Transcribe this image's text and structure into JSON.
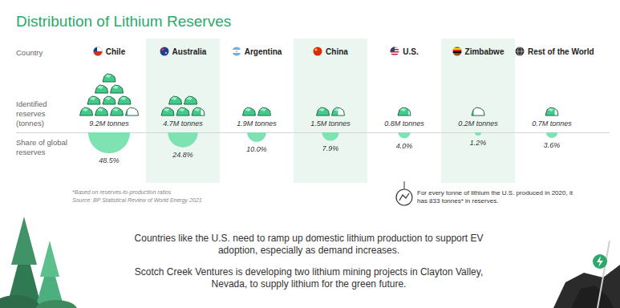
{
  "chart_data": {
    "type": "bubble",
    "title": "Distribution of Lithium Reserves",
    "categories": [
      "Chile",
      "Australia",
      "Argentina",
      "China",
      "U.S.",
      "Zimbabwe",
      "Rest of the World"
    ],
    "values": [
      48.5,
      24.8,
      10.0,
      7.9,
      4.0,
      1.2,
      3.6
    ],
    "value_labels": [
      "48.5%",
      "24.8%",
      "10.0%",
      "7.9%",
      "4.0%",
      "1.2%",
      "3.6%"
    ],
    "data_labels": true,
    "color": "#7ee2b3",
    "grid": false,
    "tick_labels": false,
    "row_labels": [
      "Country",
      "Identified reserves (tonnes)",
      "Share of global reserves"
    ],
    "reserves": [
      9.2,
      4.7,
      1.9,
      1.5,
      0.8,
      0.2,
      0.7
    ],
    "reserves_labels": [
      "9.2M tonnes",
      "4.7M tonnes",
      "1.9M tonnes",
      "1.5M tonnes",
      "0.8M tonnes",
      "0.2M tonnes",
      "0.7M tonnes"
    ],
    "footnotes": [
      "*Based on reserves-to-production ratios",
      "Source: BP Statistical Review of World Energy 2021"
    ],
    "annotation": "For every tonne of lithium the U.S. produced in 2020, it has 833 tonnes* in reserves.",
    "paragraphs": [
      "Countries like the U.S. need to ramp up domestic lithium production to support EV adoption, especially as demand increases.",
      "Scotch Creek Ventures is developing two lithium mining projects in Clayton Valley, Nevada, to supply lithium for the green future."
    ]
  }
}
